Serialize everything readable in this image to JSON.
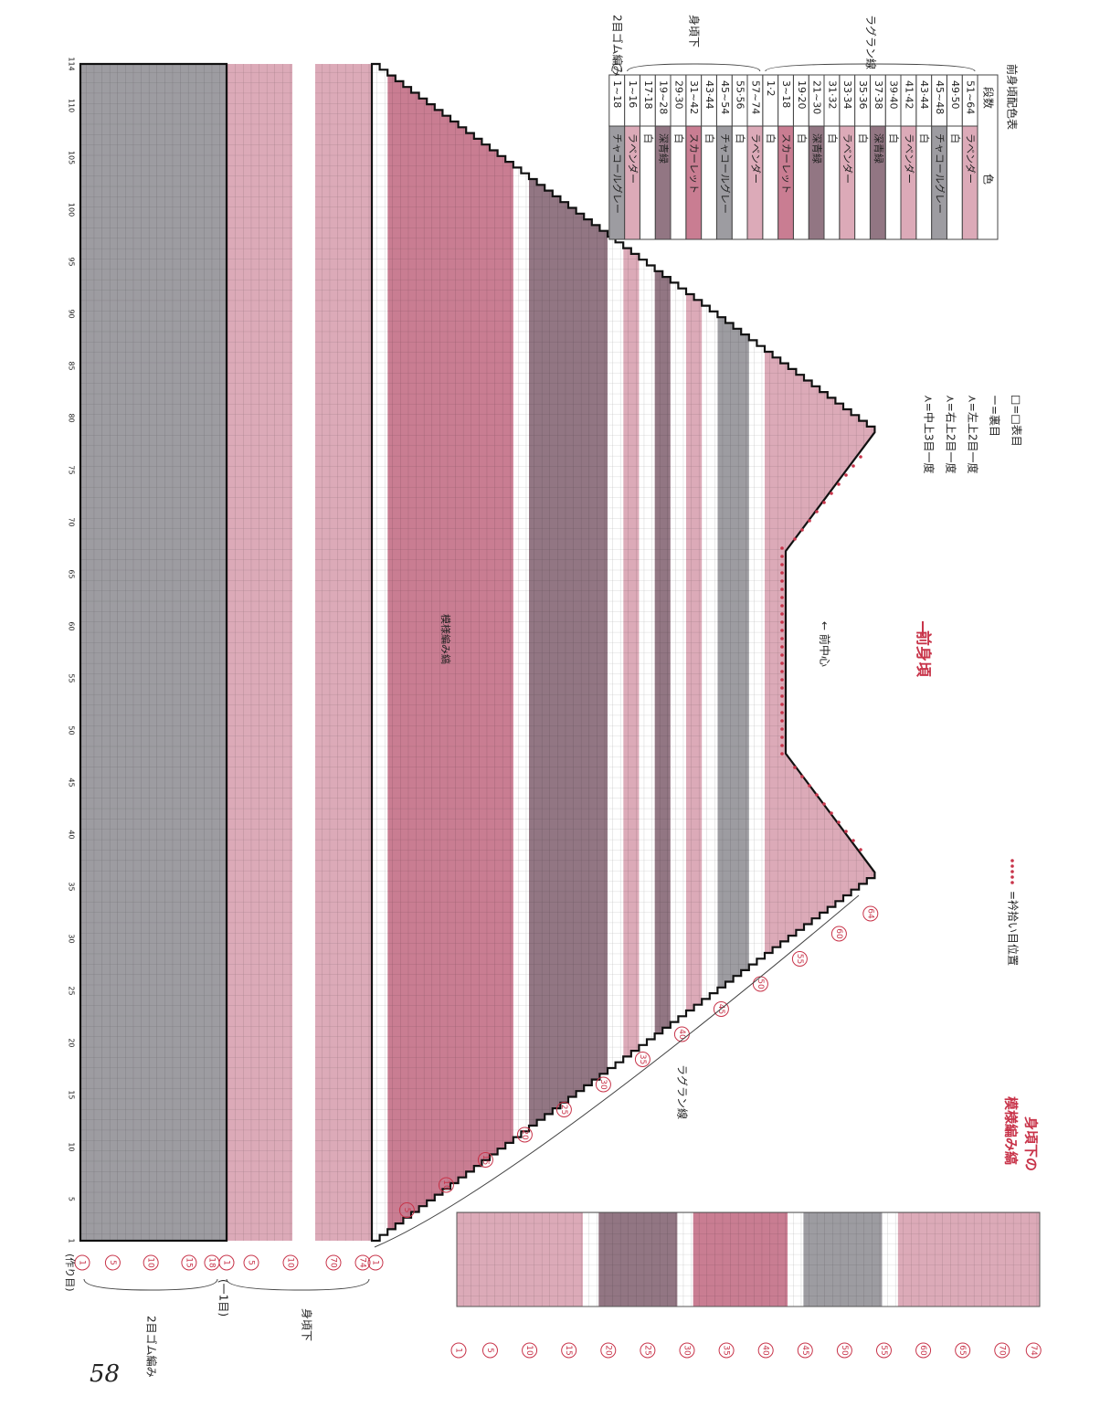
{
  "page_number": "58",
  "title": "前身頃",
  "color_table": {
    "title": "前身頃配色表",
    "headers": [
      "段数",
      "色"
    ],
    "groups": [
      {
        "label": "ラグラン線",
        "rows": [
          {
            "rows": "51~64",
            "color": "ラベンダー",
            "fill": "#dcaab8"
          },
          {
            "rows": "49·50",
            "color": "白",
            "fill": "#ffffff"
          },
          {
            "rows": "45~48",
            "color": "チャコールグレー",
            "fill": "#9d9ca1"
          },
          {
            "rows": "43·44",
            "color": "白",
            "fill": "#ffffff"
          },
          {
            "rows": "41·42",
            "color": "ラベンダー",
            "fill": "#dcaab8"
          },
          {
            "rows": "39·40",
            "color": "白",
            "fill": "#ffffff"
          },
          {
            "rows": "37·38",
            "color": "深青緑",
            "fill": "#927683"
          },
          {
            "rows": "35·36",
            "color": "白",
            "fill": "#ffffff"
          },
          {
            "rows": "33·34",
            "color": "ラベンダー",
            "fill": "#dcaab8"
          },
          {
            "rows": "31·32",
            "color": "白",
            "fill": "#ffffff"
          },
          {
            "rows": "21~30",
            "color": "深青緑",
            "fill": "#927683"
          },
          {
            "rows": "19·20",
            "color": "白",
            "fill": "#ffffff"
          },
          {
            "rows": "3~18",
            "color": "スカーレット",
            "fill": "#c97d92"
          },
          {
            "rows": "1·2",
            "color": "白",
            "fill": "#ffffff"
          }
        ]
      },
      {
        "label": "身頃下",
        "rows": [
          {
            "rows": "57~74",
            "color": "ラベンダー",
            "fill": "#dcaab8"
          },
          {
            "rows": "55·56",
            "color": "白",
            "fill": "#ffffff"
          },
          {
            "rows": "45~54",
            "color": "チャコールグレー",
            "fill": "#9d9ca1"
          },
          {
            "rows": "43·44",
            "color": "白",
            "fill": "#ffffff"
          },
          {
            "rows": "31~42",
            "color": "スカーレット",
            "fill": "#c97d92"
          },
          {
            "rows": "29·30",
            "color": "白",
            "fill": "#ffffff"
          },
          {
            "rows": "19~28",
            "color": "深青緑",
            "fill": "#927683"
          },
          {
            "rows": "17·18",
            "color": "白",
            "fill": "#ffffff"
          },
          {
            "rows": "1~16",
            "color": "ラベンダー",
            "fill": "#dcaab8"
          }
        ]
      },
      {
        "label": "2目ゴム編み",
        "rows": [
          {
            "rows": "1~18",
            "color": "チャコールグレー",
            "fill": "#9d9ca1"
          }
        ]
      }
    ]
  },
  "legend": [
    "□=□表目",
    "ー=裏目",
    "⋏=左上2目一度",
    "⋏=右上2目一度",
    "⋏=中上3目一度"
  ],
  "pickup_legend": "=衿拾い目位置",
  "labels": {
    "front_center": "← 前中心",
    "pattern": "模様編み縞",
    "raglan": "ラグラン線",
    "ribbing": "2目ゴム編み",
    "decrease": "(一1目)",
    "body": "身頃下",
    "cast_on": "(作り目)",
    "stripe_title": [
      "身頃下の",
      "模様編み縞"
    ]
  },
  "stitch_numbers": [
    1,
    5,
    10,
    15,
    20,
    25,
    30,
    35,
    40,
    45,
    50,
    55,
    60,
    65,
    70,
    75,
    80,
    85,
    90,
    95,
    100,
    105,
    110,
    114
  ],
  "ribbing_rows": [
    1,
    5,
    10,
    15,
    18
  ],
  "body_rows": [
    1,
    5,
    10,
    70,
    74
  ],
  "raglan_rows": [
    1,
    5,
    10,
    15,
    20,
    25,
    30,
    35,
    40,
    45,
    50,
    55,
    60,
    64
  ],
  "stripe_rows": [
    1,
    5,
    10,
    15,
    20,
    25,
    30,
    35,
    40,
    45,
    50,
    55,
    60,
    65,
    70,
    74
  ]
}
